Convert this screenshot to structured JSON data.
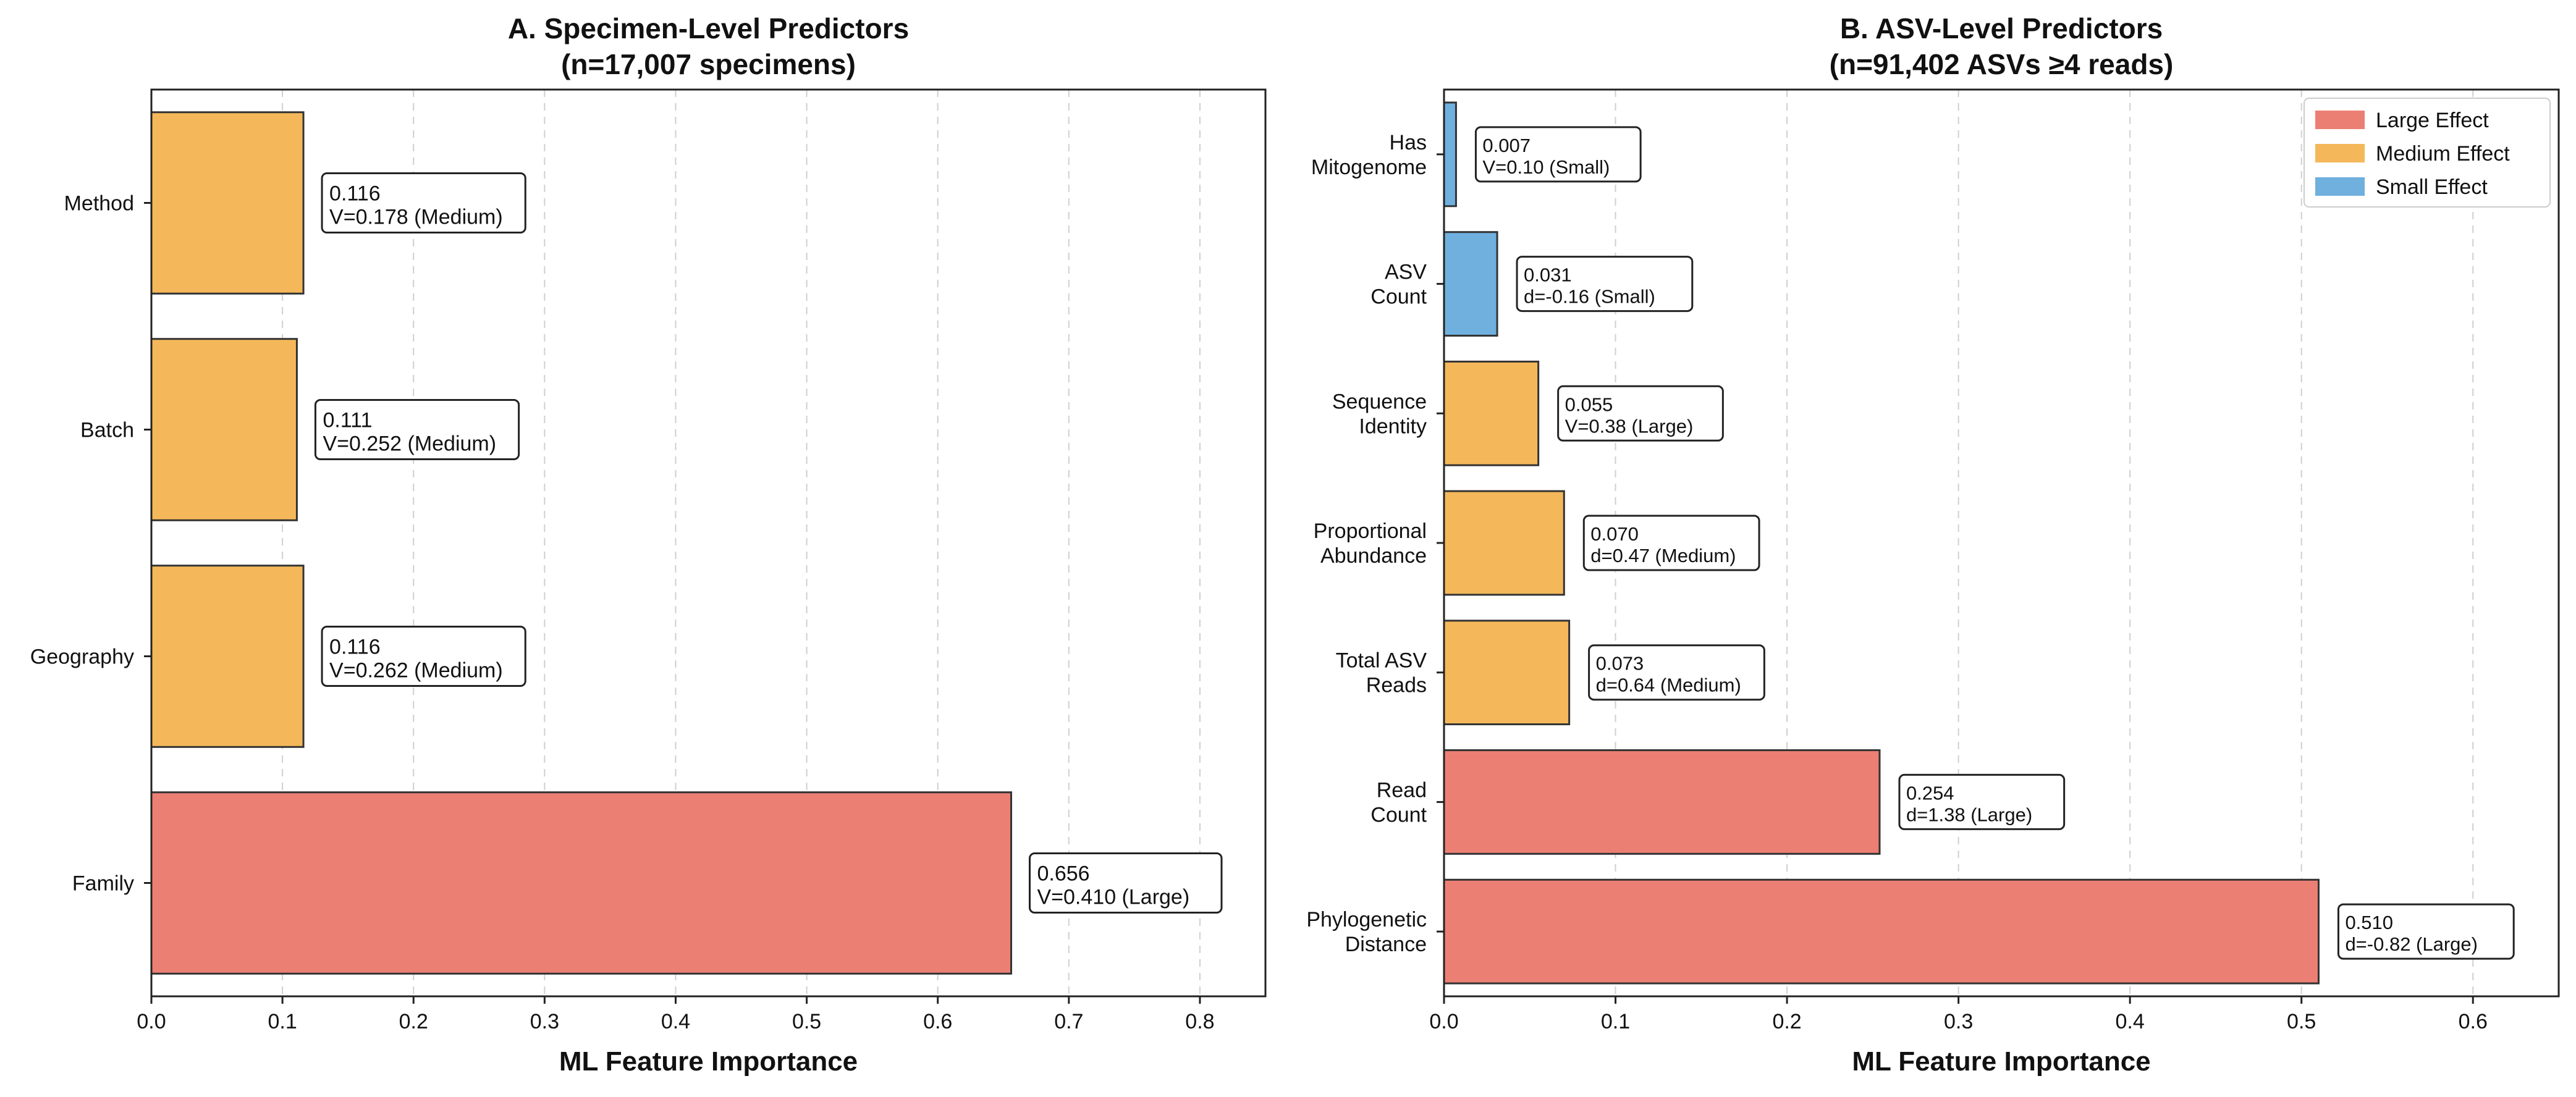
{
  "colors": {
    "large": "#EC7F74",
    "medium": "#F4B85A",
    "small": "#6FB0DE"
  },
  "legend": [
    {
      "label": "Large Effect",
      "color_key": "large"
    },
    {
      "label": "Medium Effect",
      "color_key": "medium"
    },
    {
      "label": "Small Effect",
      "color_key": "small"
    }
  ],
  "chart_data": [
    {
      "type": "bar",
      "orientation": "horizontal",
      "title_line1": "A. Specimen-Level Predictors",
      "title_line2": "(n=17,007 specimens)",
      "xlabel": "ML Feature Importance",
      "xlim": [
        0,
        0.85
      ],
      "xticks": [
        "0.0",
        "0.1",
        "0.2",
        "0.3",
        "0.4",
        "0.5",
        "0.6",
        "0.7",
        "0.8"
      ],
      "grid": "x-dashed",
      "bars": [
        {
          "label": [
            "Family"
          ],
          "value": 0.656,
          "effect": "large",
          "value_text": "0.656",
          "stat_text": "V=0.410 (Large)"
        },
        {
          "label": [
            "Geography"
          ],
          "value": 0.116,
          "effect": "medium",
          "value_text": "0.116",
          "stat_text": "V=0.262 (Medium)"
        },
        {
          "label": [
            "Batch"
          ],
          "value": 0.111,
          "effect": "medium",
          "value_text": "0.111",
          "stat_text": "V=0.252 (Medium)"
        },
        {
          "label": [
            "Method"
          ],
          "value": 0.116,
          "effect": "medium",
          "value_text": "0.116",
          "stat_text": "V=0.178 (Medium)"
        }
      ]
    },
    {
      "type": "bar",
      "orientation": "horizontal",
      "title_line1": "B. ASV-Level Predictors",
      "title_line2": "(n=91,402 ASVs ≥4 reads)",
      "xlabel": "ML Feature Importance",
      "xlim": [
        0,
        0.65
      ],
      "xticks": [
        "0.0",
        "0.1",
        "0.2",
        "0.3",
        "0.4",
        "0.5",
        "0.6"
      ],
      "grid": "x-dashed",
      "legend_position": "top-right",
      "bars": [
        {
          "label": [
            "Phylogenetic",
            "Distance"
          ],
          "value": 0.51,
          "effect": "large",
          "value_text": "0.510",
          "stat_text": "d=-0.82 (Large)"
        },
        {
          "label": [
            "Read",
            "Count"
          ],
          "value": 0.254,
          "effect": "large",
          "value_text": "0.254",
          "stat_text": "d=1.38 (Large)"
        },
        {
          "label": [
            "Total ASV",
            "Reads"
          ],
          "value": 0.073,
          "effect": "medium",
          "value_text": "0.073",
          "stat_text": "d=0.64 (Medium)"
        },
        {
          "label": [
            "Proportional",
            "Abundance"
          ],
          "value": 0.07,
          "effect": "medium",
          "value_text": "0.070",
          "stat_text": "d=0.47 (Medium)"
        },
        {
          "label": [
            "Sequence",
            "Identity"
          ],
          "value": 0.055,
          "effect": "medium",
          "value_text": "0.055",
          "stat_text": "V=0.38 (Large)"
        },
        {
          "label": [
            "ASV",
            "Count"
          ],
          "value": 0.031,
          "effect": "small",
          "value_text": "0.031",
          "stat_text": "d=-0.16 (Small)"
        },
        {
          "label": [
            "Has",
            "Mitogenome"
          ],
          "value": 0.007,
          "effect": "small",
          "value_text": "0.007",
          "stat_text": "V=0.10 (Small)"
        }
      ]
    }
  ]
}
